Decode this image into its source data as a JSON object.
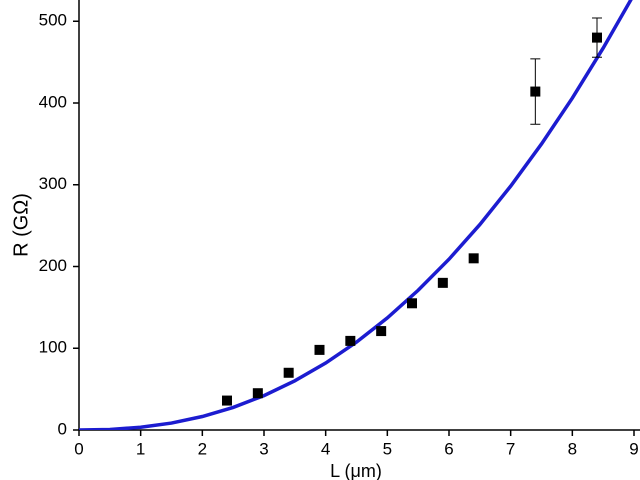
{
  "chart_data": {
    "type": "scatter",
    "xlabel": "L (μm)",
    "ylabel": "R (GΩ)",
    "xlim": [
      0,
      9
    ],
    "ylim": [
      0,
      526
    ],
    "xticks": [
      0,
      1,
      2,
      3,
      4,
      5,
      6,
      7,
      8,
      9
    ],
    "yticks": [
      0,
      100,
      200,
      300,
      400,
      500
    ],
    "series": [
      {
        "type": "scatter",
        "color": "#000000",
        "x": [
          2.4,
          2.9,
          3.4,
          3.9,
          4.4,
          4.9,
          5.4,
          5.9,
          6.4,
          7.4,
          8.4
        ],
        "values": [
          36,
          45,
          70,
          98,
          109,
          121,
          155,
          180,
          210,
          414,
          480
        ],
        "errors": [
          null,
          null,
          null,
          null,
          null,
          null,
          null,
          null,
          null,
          40,
          24
        ]
      },
      {
        "type": "line",
        "color": "#1c1cd0",
        "x": [
          0,
          0.5,
          1,
          1.5,
          2,
          2.5,
          3,
          3.5,
          4,
          4.5,
          5,
          5.5,
          6,
          6.5,
          7,
          7.5,
          8,
          8.5,
          9
        ],
        "values": [
          0,
          0.67,
          3.33,
          8.5,
          16.5,
          27.6,
          42.1,
          60.2,
          81.9,
          107.5,
          137.1,
          170.9,
          208.9,
          251.3,
          298.3,
          349.9,
          406,
          467.2,
          532.9
        ]
      }
    ]
  }
}
